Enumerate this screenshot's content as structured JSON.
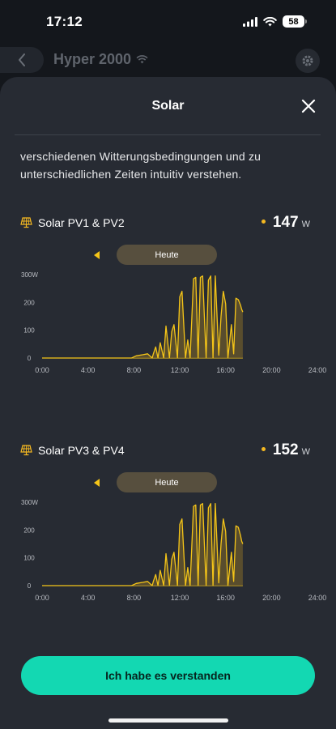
{
  "status_bar": {
    "time": "17:12",
    "battery": "58"
  },
  "background_header": {
    "title": "Hyper 2000"
  },
  "sheet": {
    "title": "Solar",
    "intro": "verschiedenen Witterungsbedingungen und zu unterschiedlichen Zeiten intuitiv verstehen.",
    "confirm_label": "Ich habe es verstanden"
  },
  "sections": [
    {
      "label": "Solar PV1 & PV2",
      "power": "147",
      "unit": "W",
      "day": "Heute"
    },
    {
      "label": "Solar PV3 & PV4",
      "power": "152",
      "unit": "W",
      "day": "Heute"
    }
  ],
  "colors": {
    "accent": "#f5c518",
    "button": "#13d8b2",
    "sheet": "#272b33"
  },
  "chart_data": [
    {
      "type": "area",
      "title": "Solar PV1 & PV2",
      "xlabel": "",
      "ylabel": "",
      "xlim": [
        0,
        24
      ],
      "ylim": [
        0,
        300
      ],
      "x_ticks": [
        "0:00",
        "4:00",
        "8:00",
        "12:00",
        "16:00",
        "20:00",
        "24:00"
      ],
      "y_ticks": [
        "0",
        "100",
        "200",
        "300W"
      ],
      "x": [
        0,
        7.8,
        8.2,
        8.8,
        9.2,
        9.6,
        9.7,
        9.9,
        10.1,
        10.3,
        10.6,
        10.8,
        11.1,
        11.3,
        11.5,
        11.8,
        12.0,
        12.2,
        12.5,
        12.7,
        12.9,
        13.2,
        13.4,
        13.6,
        13.8,
        14.0,
        14.3,
        14.5,
        14.7,
        14.9,
        15.1,
        15.4,
        15.6,
        15.8,
        16.0,
        16.2,
        16.5,
        16.7,
        16.9,
        17.1,
        17.3,
        17.4,
        17.5
      ],
      "values": [
        0,
        0,
        8,
        12,
        15,
        0,
        15,
        40,
        0,
        55,
        0,
        115,
        0,
        95,
        120,
        0,
        220,
        240,
        0,
        65,
        0,
        285,
        290,
        0,
        290,
        295,
        0,
        280,
        295,
        0,
        295,
        10,
        150,
        240,
        195,
        0,
        120,
        15,
        215,
        210,
        190,
        175,
        165
      ]
    },
    {
      "type": "area",
      "title": "Solar PV3 & PV4",
      "xlabel": "",
      "ylabel": "",
      "xlim": [
        0,
        24
      ],
      "ylim": [
        0,
        300
      ],
      "x_ticks": [
        "0:00",
        "4:00",
        "8:00",
        "12:00",
        "16:00",
        "20:00",
        "24:00"
      ],
      "y_ticks": [
        "0",
        "100",
        "200",
        "300W"
      ],
      "x": [
        0,
        7.8,
        8.2,
        8.8,
        9.2,
        9.6,
        9.7,
        9.9,
        10.1,
        10.3,
        10.6,
        10.8,
        11.1,
        11.3,
        11.5,
        11.8,
        12.0,
        12.2,
        12.5,
        12.7,
        12.9,
        13.2,
        13.4,
        13.6,
        13.8,
        14.0,
        14.3,
        14.5,
        14.7,
        14.9,
        15.1,
        15.4,
        15.6,
        15.8,
        16.0,
        16.2,
        16.5,
        16.7,
        16.9,
        17.1,
        17.3,
        17.4,
        17.5
      ],
      "values": [
        0,
        0,
        8,
        12,
        15,
        0,
        15,
        40,
        0,
        55,
        0,
        115,
        0,
        95,
        120,
        0,
        220,
        240,
        0,
        65,
        0,
        285,
        290,
        0,
        290,
        295,
        0,
        280,
        295,
        0,
        295,
        10,
        150,
        240,
        195,
        0,
        120,
        15,
        215,
        210,
        180,
        160,
        150
      ]
    }
  ]
}
